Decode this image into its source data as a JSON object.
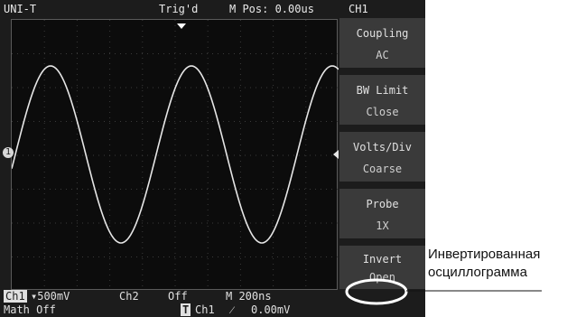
{
  "topbar": {
    "brand": "UNI-T",
    "trigger_status": "Trig'd",
    "m_pos": "M Pos: 0.00us",
    "channel": "CH1"
  },
  "menu": {
    "items": [
      {
        "label": "Coupling",
        "value": "AC"
      },
      {
        "label": "BW  Limit",
        "value": "Close"
      },
      {
        "label": "Volts/Div",
        "value": "Coarse"
      },
      {
        "label": "Probe",
        "value": "1X"
      },
      {
        "label": "Invert",
        "value": "Open"
      }
    ]
  },
  "bottom": {
    "ch1": "Ch1",
    "ch1_scale": "500mV",
    "ch2": "Ch2",
    "ch2_state": "Off",
    "timebase": "M 200ns",
    "math": "Math Off",
    "trigger_badge": "T",
    "trigger_source": "Ch1",
    "trigger_slope": "⁄",
    "trigger_level": "0.00mV"
  },
  "markers": {
    "channel_marker": "1"
  },
  "annotation": {
    "line1": "Инвертированная",
    "line2": "осциллограмма"
  },
  "colors": {
    "screen_bg": "#1c1c1c",
    "trace": "#e6e6e6",
    "menu_bg": "#3a3a3a",
    "highlight": "#ffffff"
  }
}
